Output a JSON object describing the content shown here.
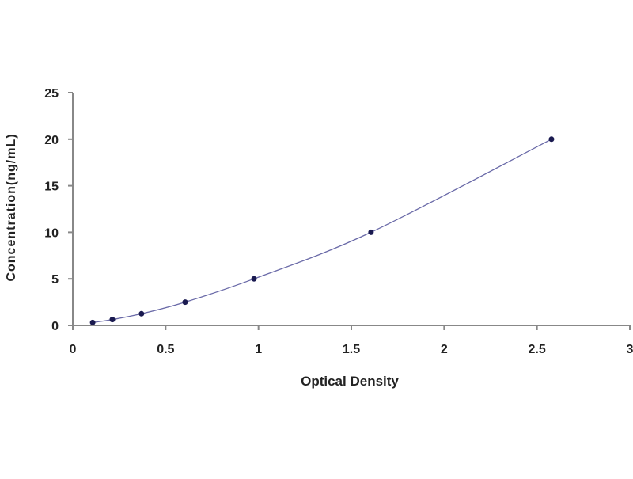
{
  "chart_data": {
    "type": "scatter",
    "title": "",
    "xlabel": "Optical Density",
    "ylabel": "Concentration(ng/mL)",
    "xlim": [
      0,
      3
    ],
    "ylim": [
      0,
      25
    ],
    "xticks": [
      "0",
      "0.5",
      "1",
      "1.5",
      "2",
      "2.5",
      "3"
    ],
    "yticks": [
      "0",
      "5",
      "10",
      "15",
      "20",
      "25"
    ],
    "grid": false,
    "legend": "none",
    "trendline": "smooth curve through points",
    "colors": {
      "line": "#6a6aa8",
      "marker": "#1a1a50",
      "axis": "#888888"
    },
    "series": [
      {
        "x": [
          0.107,
          0.213,
          0.37,
          0.605,
          0.976,
          1.606,
          2.578
        ],
        "y": [
          0.312,
          0.625,
          1.25,
          2.5,
          5,
          10,
          20
        ]
      }
    ]
  }
}
